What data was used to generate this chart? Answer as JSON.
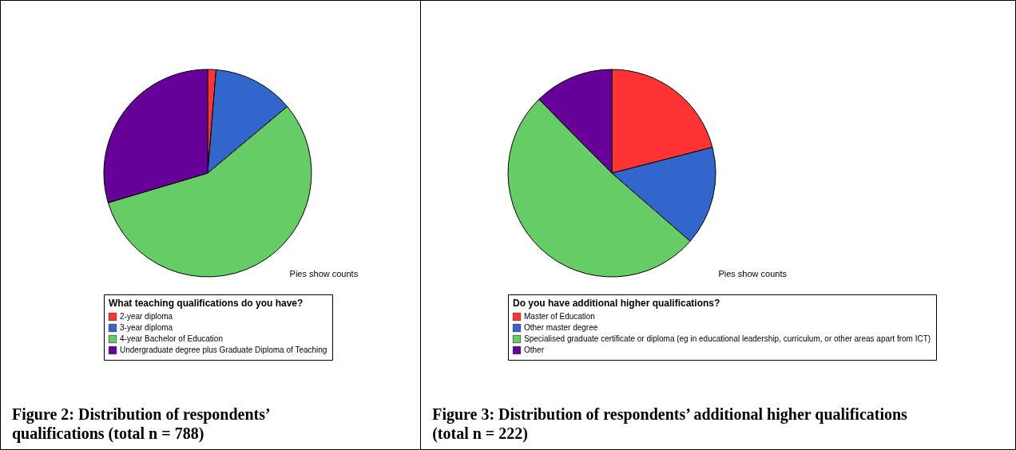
{
  "chart_data": [
    {
      "type": "pie",
      "categories": [
        "2-year diploma",
        "3-year diploma",
        "4-year Bachelor of Education",
        "Undergraduate degree plus Graduate Diploma of Teaching"
      ],
      "values": [
        1.3,
        12.6,
        56.5,
        29.6
      ],
      "colors": [
        "#ff3333",
        "#3366cc",
        "#66cc66",
        "#660099"
      ],
      "legend_title": "What teaching qualifications do you have?",
      "legend": "bottom",
      "annotations": [
        "Pies show counts",
        "Figure 2: Distribution of respondents’ qualifications (total n = 788)"
      ]
    },
    {
      "type": "pie",
      "categories": [
        "Master of Education",
        "Other master degree",
        "Specialised graduate certificate or diploma (eg in educational leadership, curriculum, or other areas apart from ICT)",
        "Other"
      ],
      "values": [
        21.0,
        15.4,
        51.2,
        12.4
      ],
      "colors": [
        "#ff3333",
        "#3366cc",
        "#66cc66",
        "#660099"
      ],
      "legend_title": "Do you have additional higher qualifications?",
      "legend": "bottom",
      "annotations": [
        "Pies show counts",
        "Figure 3: Distribution of respondents’ additional higher qualifications (total n = 222)"
      ]
    }
  ]
}
